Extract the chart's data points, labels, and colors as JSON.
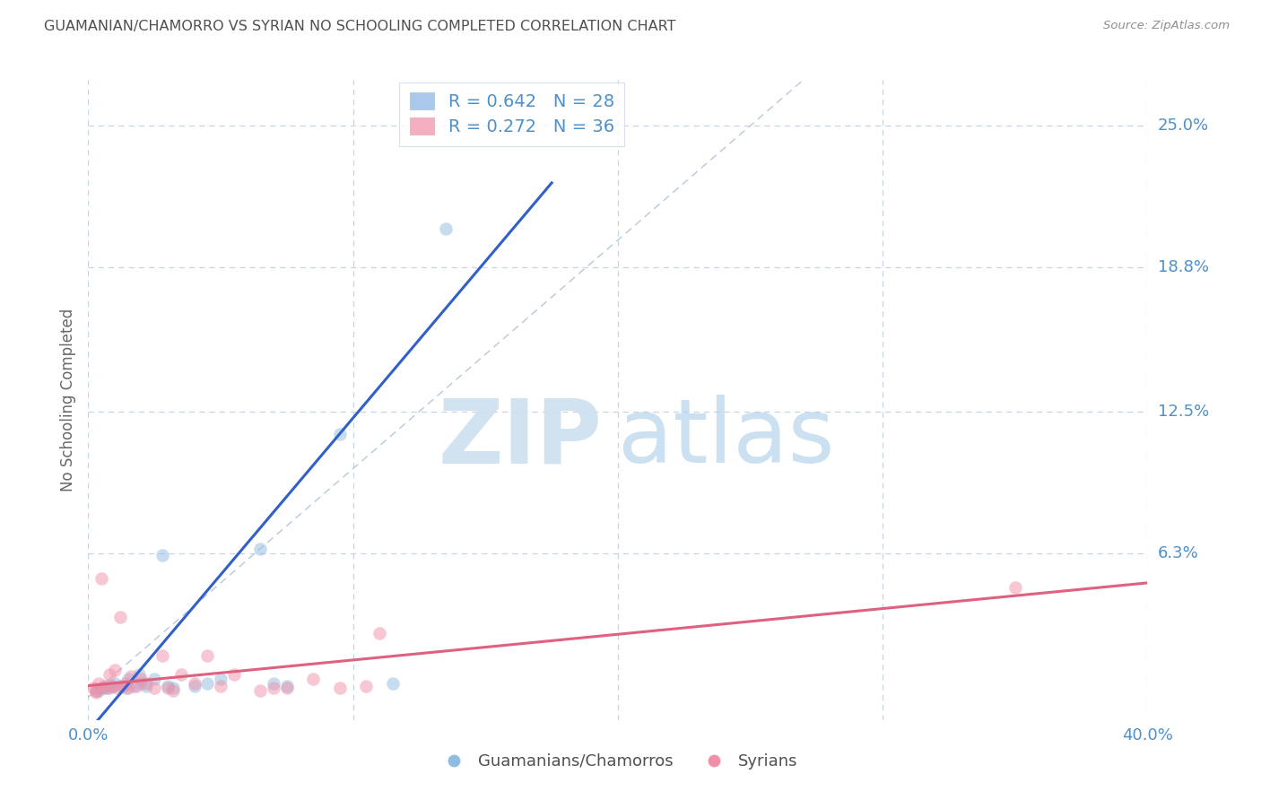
{
  "title": "GUAMANIAN/CHAMORRO VS SYRIAN NO SCHOOLING COMPLETED CORRELATION CHART",
  "source": "Source: ZipAtlas.com",
  "ylabel_label": "No Schooling Completed",
  "ylabel_ticks": [
    "25.0%",
    "18.8%",
    "12.5%",
    "6.3%"
  ],
  "ylabel_values": [
    25.0,
    18.8,
    12.5,
    6.3
  ],
  "xlim": [
    0.0,
    40.0
  ],
  "ylim": [
    -1.0,
    27.0
  ],
  "watermark_zip": "ZIP",
  "watermark_atlas": "atlas",
  "legend_entries": [
    {
      "label": "R = 0.642   N = 28",
      "color": "#aac8ea"
    },
    {
      "label": "R = 0.272   N = 36",
      "color": "#f4b0c0"
    }
  ],
  "legend_bottom": [
    "Guamanians/Chamorros",
    "Syrians"
  ],
  "guamanian_color": "#90bce0",
  "syrian_color": "#f090a8",
  "guamanian_line_color": "#3060c8",
  "syrian_line_color": "#e06080",
  "diagonal_color": "#b8c8d8",
  "title_color": "#505050",
  "source_color": "#909090",
  "axis_label_color": "#5090c8",
  "background_color": "#ffffff",
  "grid_color": "#c8d4e0",
  "guamanian_points": [
    [
      0.3,
      0.3
    ],
    [
      0.5,
      0.4
    ],
    [
      0.7,
      0.5
    ],
    [
      0.8,
      0.4
    ],
    [
      1.0,
      0.6
    ],
    [
      1.2,
      0.5
    ],
    [
      1.4,
      0.4
    ],
    [
      1.5,
      0.8
    ],
    [
      1.7,
      0.5
    ],
    [
      1.9,
      1.0
    ],
    [
      2.0,
      0.6
    ],
    [
      2.2,
      0.5
    ],
    [
      2.5,
      0.8
    ],
    [
      2.8,
      6.2
    ],
    [
      3.0,
      0.5
    ],
    [
      3.2,
      0.4
    ],
    [
      4.0,
      0.5
    ],
    [
      4.5,
      0.6
    ],
    [
      5.0,
      0.8
    ],
    [
      6.5,
      6.5
    ],
    [
      7.0,
      0.6
    ],
    [
      7.5,
      0.5
    ],
    [
      9.5,
      11.5
    ],
    [
      11.5,
      0.6
    ],
    [
      13.5,
      20.5
    ],
    [
      0.4,
      0.3
    ],
    [
      0.6,
      0.4
    ],
    [
      0.9,
      0.5
    ]
  ],
  "syrian_points": [
    [
      0.2,
      0.4
    ],
    [
      0.3,
      0.3
    ],
    [
      0.4,
      0.6
    ],
    [
      0.5,
      5.2
    ],
    [
      0.6,
      0.5
    ],
    [
      0.7,
      0.4
    ],
    [
      0.8,
      1.0
    ],
    [
      0.9,
      0.5
    ],
    [
      1.0,
      1.2
    ],
    [
      1.1,
      0.4
    ],
    [
      1.2,
      3.5
    ],
    [
      1.3,
      0.5
    ],
    [
      1.4,
      0.6
    ],
    [
      1.5,
      0.4
    ],
    [
      1.6,
      0.9
    ],
    [
      1.8,
      0.5
    ],
    [
      2.0,
      0.8
    ],
    [
      2.2,
      0.6
    ],
    [
      2.5,
      0.4
    ],
    [
      2.8,
      1.8
    ],
    [
      3.0,
      0.4
    ],
    [
      3.2,
      0.3
    ],
    [
      3.5,
      1.0
    ],
    [
      4.0,
      0.6
    ],
    [
      4.5,
      1.8
    ],
    [
      5.0,
      0.5
    ],
    [
      5.5,
      1.0
    ],
    [
      6.5,
      0.3
    ],
    [
      7.0,
      0.4
    ],
    [
      7.5,
      0.4
    ],
    [
      8.5,
      0.8
    ],
    [
      9.5,
      0.4
    ],
    [
      10.5,
      0.5
    ],
    [
      11.0,
      2.8
    ],
    [
      35.0,
      4.8
    ],
    [
      0.3,
      0.2
    ]
  ],
  "guam_line_x": [
    0.0,
    17.5
  ],
  "guam_line_y": [
    -1.5,
    22.5
  ],
  "syr_line_x": [
    0.0,
    40.0
  ],
  "syr_line_y": [
    0.5,
    5.0
  ]
}
